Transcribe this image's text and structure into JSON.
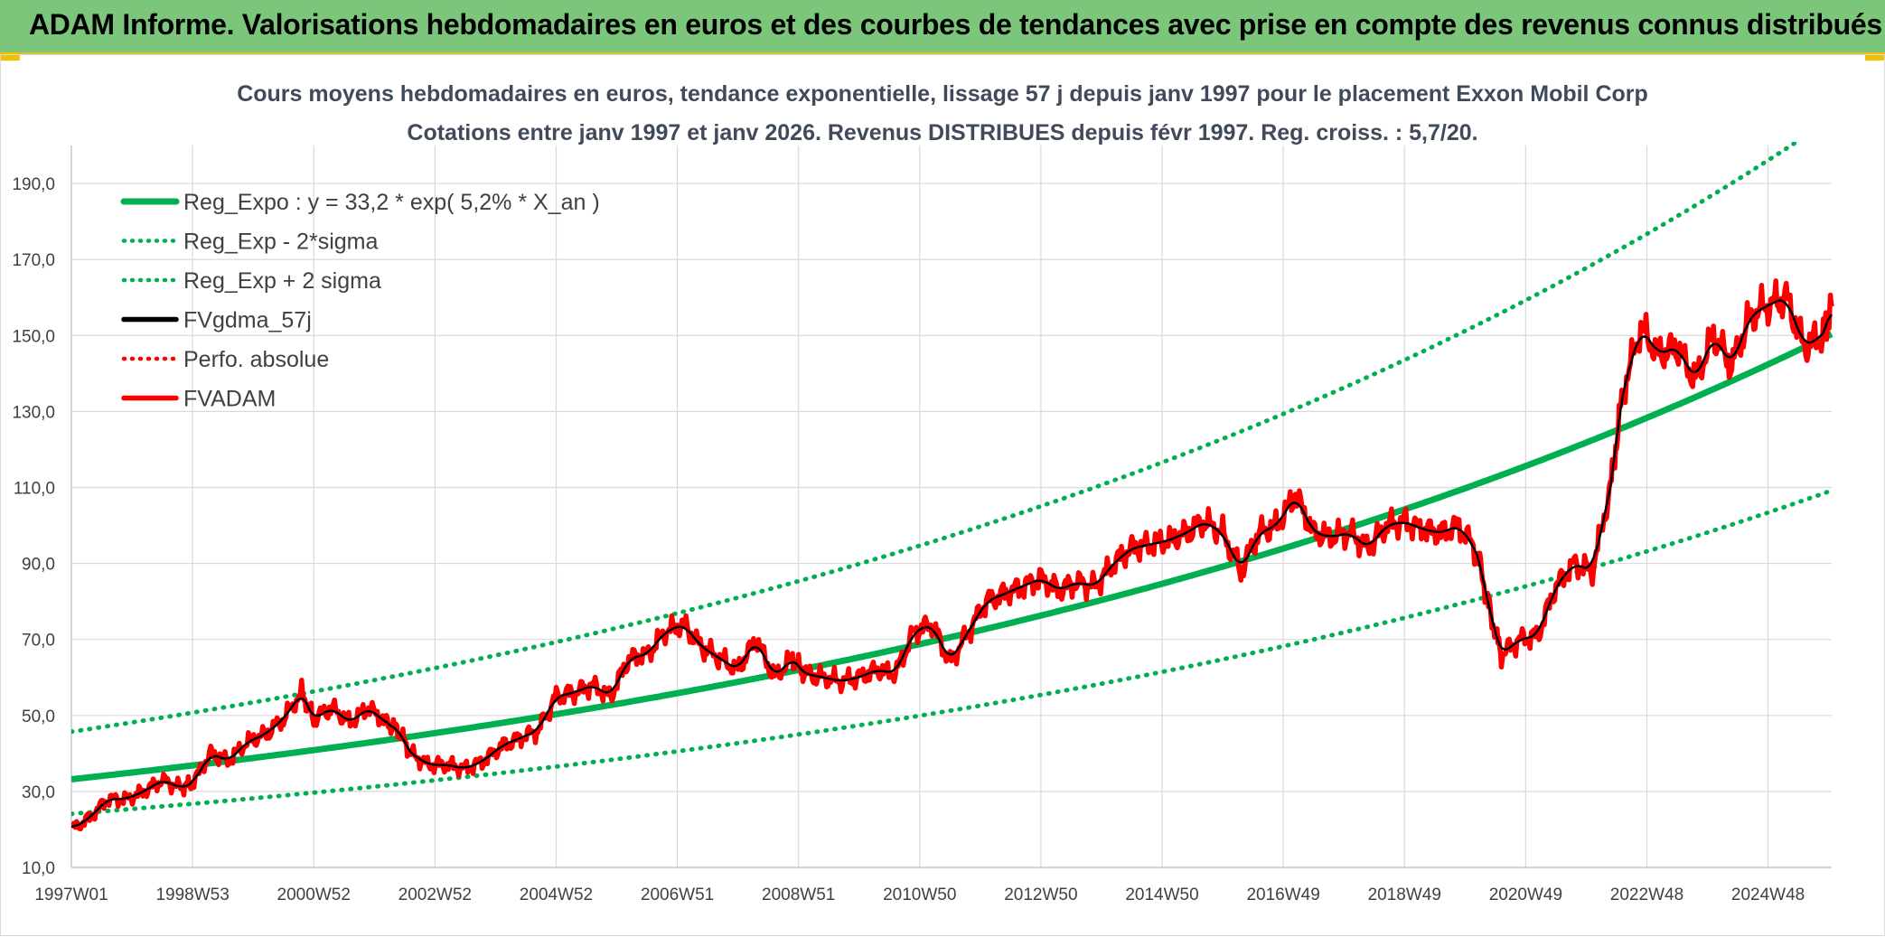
{
  "banner": {
    "title": "ADAM Informe. Valorisations hebdomadaires en euros et des courbes de tendances avec prise en compte des revenus connus distribués"
  },
  "chart_data": {
    "type": "line",
    "title": "Cours moyens hebdomadaires en euros, tendance exponentielle, lissage 57 j depuis janv 1997 pour le placement Exxon Mobil Corp",
    "subtitle": "Cotations entre janv 1997 et janv 2026. Revenus DISTRIBUES depuis févr 1997. Reg. croiss. : 5,7/20.",
    "xlabel": "",
    "ylabel": "",
    "x_range": [
      1997.0,
      2026.05
    ],
    "ylim": [
      10,
      200
    ],
    "yticks": [
      "190,0",
      "170,0",
      "150,0",
      "130,0",
      "110,0",
      "90,0",
      "70,0",
      "50,0",
      "30,0",
      "10,0"
    ],
    "ytick_values": [
      190,
      170,
      150,
      130,
      110,
      90,
      70,
      50,
      30,
      10
    ],
    "xticks": [
      "1997W01",
      "1998W53",
      "2000W52",
      "2002W52",
      "2004W52",
      "2006W51",
      "2008W51",
      "2010W50",
      "2012W50",
      "2014W50",
      "2016W49",
      "2018W49",
      "2020W49",
      "2022W48",
      "2024W48"
    ],
    "xtick_values": [
      1997.0,
      1999.0,
      2001.0,
      2003.0,
      2005.0,
      2007.0,
      2009.0,
      2011.0,
      2013.0,
      2015.0,
      2017.0,
      2019.0,
      2021.0,
      2023.0,
      2025.0
    ],
    "grid": true,
    "legend_position": "top-left",
    "regression": {
      "a": 33.2,
      "rate": 0.052,
      "sigma_offset": 0.32
    },
    "series": [
      {
        "name": "Reg_Expo : y = 33,2 * exp( 5,2% *  X_an )",
        "color": "#00b050",
        "style": "solid"
      },
      {
        "name": "Reg_Exp - 2*sigma",
        "color": "#00b050",
        "style": "dotted"
      },
      {
        "name": "Reg_Exp + 2 sigma",
        "color": "#00b050",
        "style": "dotted"
      },
      {
        "name": "FVgdma_57j",
        "color": "#000000",
        "style": "solid"
      },
      {
        "name": "Perfo. absolue",
        "color": "#ff0000",
        "style": "dotted"
      },
      {
        "name": "FVADAM",
        "color": "#ff0000",
        "style": "solid",
        "x": [
          1997.0,
          1997.3,
          1997.6,
          1997.9,
          1998.2,
          1998.5,
          1998.8,
          1999.0,
          1999.3,
          1999.6,
          1999.9,
          2000.2,
          2000.5,
          2000.8,
          2001.0,
          2001.3,
          2001.6,
          2001.9,
          2002.2,
          2002.4,
          2002.6,
          2002.9,
          2003.2,
          2003.5,
          2003.8,
          2004.1,
          2004.4,
          2004.7,
          2005.0,
          2005.3,
          2005.6,
          2005.9,
          2006.2,
          2006.5,
          2006.8,
          2007.1,
          2007.4,
          2007.7,
          2008.0,
          2008.3,
          2008.6,
          2008.9,
          2009.1,
          2009.4,
          2009.7,
          2010.0,
          2010.3,
          2010.6,
          2010.9,
          2011.2,
          2011.5,
          2011.8,
          2012.1,
          2012.4,
          2012.7,
          2013.0,
          2013.3,
          2013.6,
          2013.9,
          2014.2,
          2014.5,
          2014.8,
          2015.1,
          2015.4,
          2015.7,
          2016.0,
          2016.3,
          2016.6,
          2016.9,
          2017.2,
          2017.5,
          2017.8,
          2018.1,
          2018.4,
          2018.7,
          2019.0,
          2019.3,
          2019.6,
          2019.9,
          2020.2,
          2020.4,
          2020.6,
          2020.9,
          2021.2,
          2021.5,
          2021.8,
          2022.1,
          2022.4,
          2022.6,
          2022.9,
          2023.2,
          2023.5,
          2023.8,
          2024.1,
          2024.4,
          2024.7,
          2025.0,
          2025.3,
          2025.6,
          2025.9,
          2026.05
        ],
        "values": [
          20,
          23,
          28,
          28,
          30,
          33,
          31,
          32,
          40,
          38,
          43,
          45,
          49,
          56,
          49,
          52,
          48,
          52,
          48,
          46,
          40,
          37,
          37,
          36,
          38,
          42,
          44,
          46,
          55,
          56,
          58,
          55,
          65,
          66,
          72,
          74,
          68,
          65,
          62,
          70,
          60,
          65,
          61,
          60,
          59,
          60,
          62,
          61,
          72,
          74,
          64,
          72,
          80,
          82,
          84,
          86,
          83,
          85,
          84,
          90,
          94,
          95,
          96,
          98,
          101,
          98,
          88,
          98,
          100,
          108,
          98,
          97,
          98,
          94,
          100,
          101,
          99,
          98,
          100,
          93,
          78,
          66,
          70,
          71,
          84,
          90,
          88,
          110,
          135,
          152,
          145,
          147,
          138,
          150,
          142,
          155,
          158,
          160,
          147,
          150,
          157
        ]
      }
    ]
  }
}
